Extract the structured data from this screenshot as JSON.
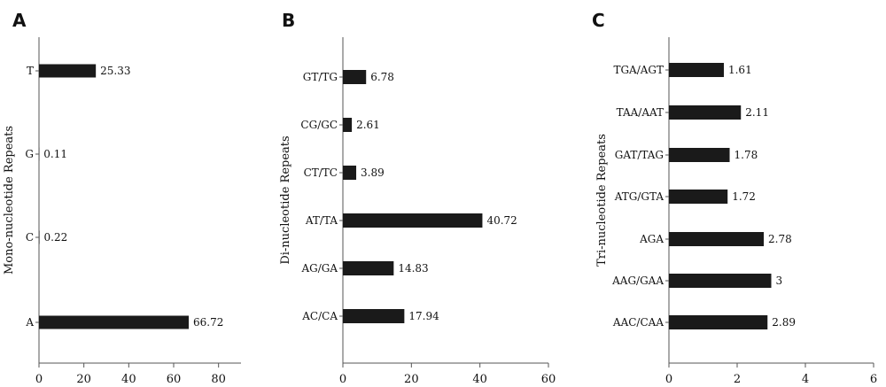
{
  "colors": {
    "bar": "#1a1a1a",
    "axis": "#555555",
    "text": "#111111"
  },
  "chart_data": [
    {
      "type": "bar",
      "orientation": "horizontal",
      "panel_label": "A",
      "title": "",
      "xlabel": "",
      "ylabel": "Mono-nucleotide Repeats",
      "categories": [
        "T",
        "G",
        "C",
        "A"
      ],
      "values": [
        25.33,
        0.11,
        0.22,
        66.72
      ],
      "value_labels": [
        "25.33",
        "0.11",
        "0.22",
        "66.72"
      ],
      "xlim": [
        0,
        90
      ],
      "xticks": [
        0,
        20,
        40,
        60,
        80
      ],
      "xtick_labels": [
        "0",
        "20",
        "40",
        "60",
        "80"
      ],
      "grid": false,
      "legend": "none"
    },
    {
      "type": "bar",
      "orientation": "horizontal",
      "panel_label": "B",
      "title": "",
      "xlabel": "",
      "ylabel": "Di-nucleotide Repeats",
      "categories": [
        "GT/TG",
        "CG/GC",
        "CT/TC",
        "AT/TA",
        "AG/GA",
        "AC/CA"
      ],
      "values": [
        6.78,
        2.61,
        3.89,
        40.72,
        14.83,
        17.94
      ],
      "value_labels": [
        "6.78",
        "2.61",
        "3.89",
        "40.72",
        "14.83",
        "17.94"
      ],
      "xlim": [
        0,
        60
      ],
      "xticks": [
        0,
        20,
        40,
        60
      ],
      "xtick_labels": [
        "0",
        "20",
        "40",
        "60"
      ],
      "grid": false,
      "legend": "none"
    },
    {
      "type": "bar",
      "orientation": "horizontal",
      "panel_label": "C",
      "title": "",
      "xlabel": "",
      "ylabel": "Tri-nucleotide Repeats",
      "categories": [
        "TGA/AGT",
        "TAA/AAT",
        "GAT/TAG",
        "ATG/GTA",
        "AGA",
        "AAG/GAA",
        "AAC/CAA"
      ],
      "values": [
        1.61,
        2.11,
        1.78,
        1.72,
        2.78,
        3,
        2.89
      ],
      "value_labels": [
        "1.61",
        "2.11",
        "1.78",
        "1.72",
        "2.78",
        "3",
        "2.89"
      ],
      "xlim": [
        0,
        6
      ],
      "xticks": [
        0,
        2,
        4,
        6
      ],
      "xtick_labels": [
        "0",
        "2",
        "4",
        "6"
      ],
      "grid": false,
      "legend": "none"
    }
  ]
}
